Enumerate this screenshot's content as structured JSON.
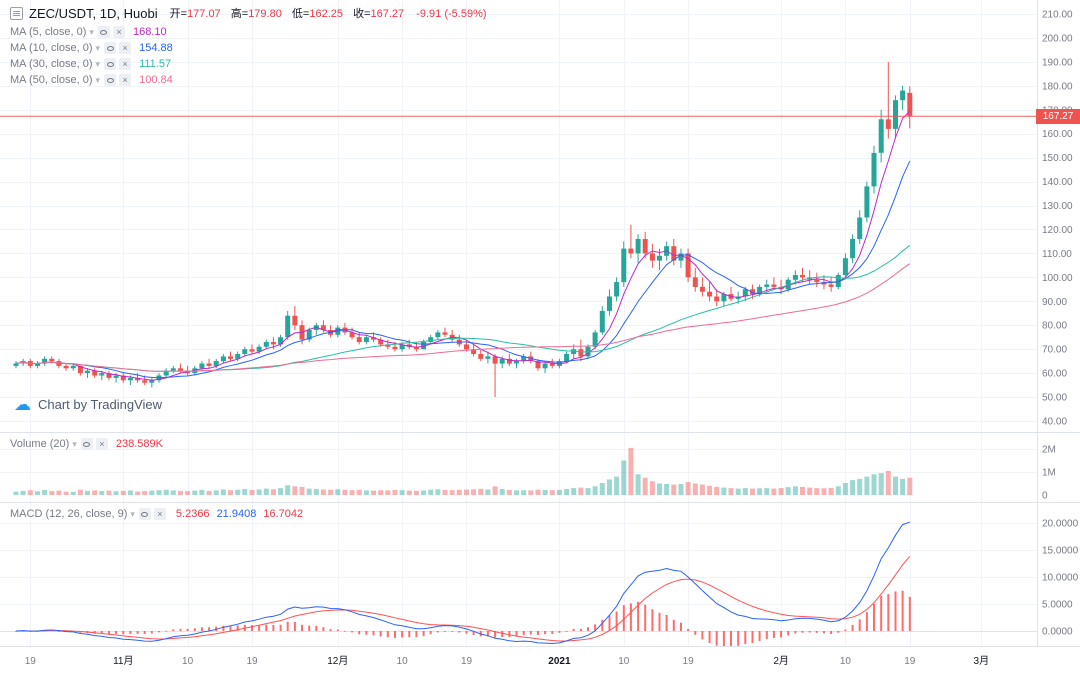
{
  "header": {
    "symbol": "ZEC/USDT, 1D, Huobi",
    "ohlc": {
      "open_label": "开=",
      "open": "177.07",
      "high_label": "高=",
      "high": "179.80",
      "low_label": "低=",
      "low": "162.25",
      "close_label": "收=",
      "close": "167.27",
      "change": "-9.91 (-5.59%)"
    }
  },
  "ma_rows": [
    {
      "label": "MA (5, close, 0)",
      "value": "168.10"
    },
    {
      "label": "MA (10, close, 0)",
      "value": "154.88"
    },
    {
      "label": "MA (30, close, 0)",
      "value": "111.57"
    },
    {
      "label": "MA (50, close, 0)",
      "value": "100.84"
    }
  ],
  "volume_pane": {
    "label": "Volume (20)",
    "value": "238.589K"
  },
  "macd_pane": {
    "label": "MACD (12, 26, close, 9)",
    "hist": "5.2366",
    "macd": "21.9408",
    "signal": "16.7042"
  },
  "watermark": "Chart by TradingView",
  "price_label": "167.27",
  "axes": {
    "price_ticks": [
      "210.00",
      "200.00",
      "190.00",
      "180.00",
      "170.00",
      "160.00",
      "150.00",
      "140.00",
      "130.00",
      "120.00",
      "110.00",
      "100.00",
      "90.00",
      "80.00",
      "70.00",
      "60.00",
      "50.00",
      "40.00"
    ],
    "volume_ticks": [
      "2M",
      "1M",
      "0"
    ],
    "macd_ticks": [
      "20.0000",
      "15.0000",
      "10.0000",
      "5.0000",
      "0.0000"
    ],
    "time_ticks": [
      {
        "i": 2,
        "label": "19",
        "kind": "day"
      },
      {
        "i": 15,
        "label": "11月",
        "kind": "month"
      },
      {
        "i": 24,
        "label": "10",
        "kind": "day"
      },
      {
        "i": 33,
        "label": "19",
        "kind": "day"
      },
      {
        "i": 45,
        "label": "12月",
        "kind": "month"
      },
      {
        "i": 54,
        "label": "10",
        "kind": "day"
      },
      {
        "i": 63,
        "label": "19",
        "kind": "day"
      },
      {
        "i": 76,
        "label": "2021",
        "kind": "year"
      },
      {
        "i": 85,
        "label": "10",
        "kind": "day"
      },
      {
        "i": 94,
        "label": "19",
        "kind": "day"
      },
      {
        "i": 107,
        "label": "2月",
        "kind": "month"
      },
      {
        "i": 116,
        "label": "10",
        "kind": "day"
      },
      {
        "i": 125,
        "label": "19",
        "kind": "day"
      },
      {
        "i": 135,
        "label": "3月",
        "kind": "month"
      }
    ]
  },
  "colors": {
    "up": "#26a69a",
    "down": "#ef5350",
    "vol_up": "rgba(38,166,154,0.45)",
    "vol_down": "rgba(239,83,80,0.45)",
    "ma5": "#c126c9",
    "ma10": "#2962ff",
    "ma30": "#26bfa5",
    "ma50": "#ef6c94",
    "macd_line": "#2962ff",
    "signal_line": "#ff5252",
    "hist": "#ff5252",
    "price_line": "#ef5350",
    "grid": "#f0f3fa",
    "separator": "#e0e3eb",
    "axis_text": "#787b86",
    "value_red": "#f23645"
  },
  "chart_data": {
    "type": "candlestick",
    "title": "ZEC/USDT, 1D, Huobi",
    "legend_note": "main pane: OHLC candles with MA(5/10/30/50); sub-panes: Volume(20) and MACD(12,26,9)",
    "price_axis_range": [
      40,
      210
    ],
    "volume_axis_max_thousands": 2000,
    "macd_axis_range": [
      0,
      20
    ],
    "last_price": 167.27,
    "volume_unit": "thousands",
    "indicators": {
      "ma_periods": [
        5,
        10,
        30,
        50
      ],
      "volume_ma": 20,
      "macd_params": [
        12,
        26,
        9
      ]
    },
    "candles_ohlcv": [
      [
        63,
        65,
        62,
        64,
        150
      ],
      [
        64,
        66,
        63,
        65,
        180
      ],
      [
        65,
        66,
        62,
        63,
        210
      ],
      [
        63,
        65,
        62,
        64,
        160
      ],
      [
        64,
        67,
        63,
        66,
        220
      ],
      [
        66,
        67,
        64,
        65,
        170
      ],
      [
        65,
        66,
        62,
        63,
        190
      ],
      [
        63,
        64,
        61,
        62,
        150
      ],
      [
        62,
        64,
        61,
        63,
        140
      ],
      [
        63,
        63,
        59,
        60,
        230
      ],
      [
        60,
        62,
        58,
        61,
        180
      ],
      [
        61,
        62,
        58,
        59,
        200
      ],
      [
        59,
        61,
        57,
        60,
        170
      ],
      [
        60,
        61,
        57,
        58,
        190
      ],
      [
        58,
        60,
        56,
        59,
        160
      ],
      [
        59,
        60,
        56,
        57,
        180
      ],
      [
        57,
        59,
        55,
        58,
        200
      ],
      [
        58,
        60,
        56,
        57,
        150
      ],
      [
        57,
        59,
        55,
        56,
        170
      ],
      [
        56,
        58,
        54,
        57,
        190
      ],
      [
        57,
        60,
        56,
        59,
        210
      ],
      [
        59,
        62,
        58,
        61,
        230
      ],
      [
        61,
        63,
        60,
        62,
        200
      ],
      [
        62,
        64,
        60,
        61,
        180
      ],
      [
        61,
        63,
        59,
        60,
        170
      ],
      [
        60,
        63,
        59,
        62,
        190
      ],
      [
        62,
        65,
        61,
        64,
        220
      ],
      [
        64,
        66,
        62,
        63,
        180
      ],
      [
        63,
        66,
        62,
        65,
        200
      ],
      [
        65,
        68,
        64,
        67,
        240
      ],
      [
        67,
        69,
        65,
        66,
        210
      ],
      [
        66,
        69,
        65,
        68,
        230
      ],
      [
        68,
        71,
        67,
        70,
        260
      ],
      [
        70,
        72,
        68,
        69,
        220
      ],
      [
        69,
        72,
        68,
        71,
        240
      ],
      [
        71,
        74,
        70,
        73,
        280
      ],
      [
        73,
        75,
        70,
        72,
        250
      ],
      [
        72,
        76,
        71,
        75,
        300
      ],
      [
        75,
        86,
        74,
        84,
        420
      ],
      [
        84,
        88,
        78,
        80,
        380
      ],
      [
        80,
        82,
        72,
        74,
        350
      ],
      [
        74,
        79,
        73,
        78,
        280
      ],
      [
        78,
        81,
        76,
        80,
        260
      ],
      [
        80,
        82,
        77,
        78,
        240
      ],
      [
        78,
        80,
        75,
        76,
        230
      ],
      [
        76,
        80,
        75,
        79,
        250
      ],
      [
        79,
        81,
        76,
        77,
        220
      ],
      [
        77,
        79,
        74,
        75,
        210
      ],
      [
        75,
        77,
        72,
        73,
        230
      ],
      [
        73,
        76,
        72,
        75,
        200
      ],
      [
        75,
        77,
        73,
        74,
        190
      ],
      [
        74,
        75,
        71,
        72,
        210
      ],
      [
        72,
        74,
        70,
        71,
        200
      ],
      [
        71,
        73,
        69,
        70,
        220
      ],
      [
        70,
        73,
        69,
        72,
        210
      ],
      [
        72,
        74,
        70,
        71,
        190
      ],
      [
        71,
        73,
        69,
        70,
        180
      ],
      [
        70,
        74,
        70,
        73,
        200
      ],
      [
        73,
        76,
        72,
        75,
        230
      ],
      [
        75,
        78,
        74,
        77,
        250
      ],
      [
        77,
        79,
        75,
        76,
        220
      ],
      [
        76,
        78,
        73,
        74,
        210
      ],
      [
        74,
        76,
        71,
        72,
        230
      ],
      [
        72,
        74,
        69,
        70,
        240
      ],
      [
        70,
        72,
        67,
        68,
        250
      ],
      [
        68,
        70,
        65,
        66,
        270
      ],
      [
        66,
        69,
        64,
        67,
        240
      ],
      [
        67,
        68,
        50,
        64,
        380
      ],
      [
        64,
        67,
        62,
        66,
        260
      ],
      [
        66,
        68,
        63,
        64,
        220
      ],
      [
        64,
        66,
        62,
        65,
        200
      ],
      [
        65,
        68,
        64,
        67,
        210
      ],
      [
        67,
        69,
        64,
        65,
        200
      ],
      [
        65,
        66,
        61,
        62,
        230
      ],
      [
        62,
        65,
        60,
        64,
        220
      ],
      [
        64,
        66,
        62,
        63,
        210
      ],
      [
        63,
        66,
        62,
        65,
        220
      ],
      [
        65,
        69,
        64,
        68,
        260
      ],
      [
        68,
        72,
        66,
        70,
        300
      ],
      [
        70,
        74,
        65,
        67,
        320
      ],
      [
        67,
        72,
        66,
        71,
        300
      ],
      [
        71,
        78,
        70,
        77,
        380
      ],
      [
        77,
        88,
        76,
        86,
        520
      ],
      [
        86,
        95,
        84,
        92,
        680
      ],
      [
        92,
        100,
        90,
        98,
        800
      ],
      [
        98,
        115,
        96,
        112,
        1500
      ],
      [
        112,
        122,
        108,
        110,
        2050
      ],
      [
        110,
        118,
        106,
        116,
        900
      ],
      [
        116,
        119,
        108,
        110,
        750
      ],
      [
        110,
        114,
        104,
        107,
        600
      ],
      [
        107,
        112,
        103,
        109,
        500
      ],
      [
        109,
        115,
        107,
        113,
        480
      ],
      [
        113,
        116,
        105,
        107,
        450
      ],
      [
        107,
        112,
        104,
        110,
        480
      ],
      [
        110,
        112,
        98,
        100,
        560
      ],
      [
        100,
        104,
        94,
        96,
        500
      ],
      [
        96,
        100,
        92,
        94,
        450
      ],
      [
        94,
        98,
        90,
        92,
        400
      ],
      [
        92,
        95,
        88,
        90,
        350
      ],
      [
        90,
        94,
        88,
        93,
        320
      ],
      [
        93,
        96,
        90,
        91,
        300
      ],
      [
        91,
        94,
        89,
        92,
        280
      ],
      [
        92,
        96,
        90,
        95,
        300
      ],
      [
        95,
        97,
        91,
        93,
        280
      ],
      [
        93,
        97,
        92,
        96,
        290
      ],
      [
        96,
        99,
        94,
        97,
        300
      ],
      [
        97,
        100,
        95,
        96,
        280
      ],
      [
        96,
        99,
        93,
        95,
        300
      ],
      [
        95,
        100,
        94,
        99,
        340
      ],
      [
        99,
        103,
        97,
        101,
        380
      ],
      [
        101,
        104,
        98,
        100,
        350
      ],
      [
        100,
        103,
        97,
        99,
        320
      ],
      [
        99,
        102,
        96,
        98,
        300
      ],
      [
        98,
        101,
        95,
        97,
        290
      ],
      [
        97,
        100,
        94,
        96,
        310
      ],
      [
        96,
        102,
        95,
        101,
        380
      ],
      [
        101,
        110,
        100,
        108,
        520
      ],
      [
        108,
        118,
        106,
        116,
        650
      ],
      [
        116,
        128,
        114,
        125,
        700
      ],
      [
        125,
        140,
        123,
        138,
        800
      ],
      [
        138,
        155,
        135,
        152,
        900
      ],
      [
        152,
        170,
        148,
        166,
        950
      ],
      [
        166,
        190,
        158,
        162,
        1050
      ],
      [
        162,
        176,
        158,
        174,
        800
      ],
      [
        174,
        180,
        170,
        178,
        700
      ],
      [
        177.07,
        179.8,
        162.25,
        167.27,
        750
      ]
    ]
  }
}
